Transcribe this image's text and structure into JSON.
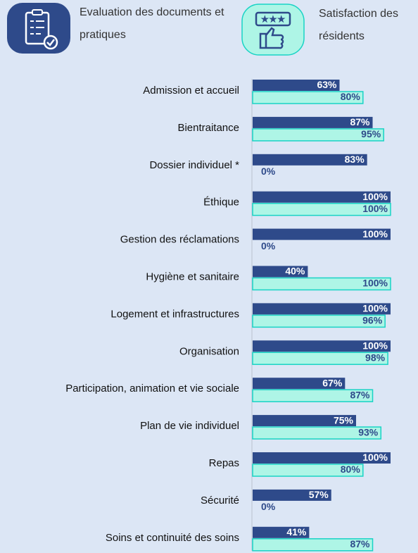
{
  "chart_data": {
    "type": "bar",
    "orientation": "horizontal",
    "categories": [
      "Admission et accueil",
      "Bientraitance",
      "Dossier individuel *",
      "Éthique",
      "Gestion des réclamations",
      "Hygiène et sanitaire",
      "Logement et infrastructures",
      "Organisation",
      "Participation, animation et vie sociale",
      "Plan de vie individuel",
      "Repas",
      "Sécurité",
      "Soins et continuité des soins"
    ],
    "series": [
      {
        "name": "Evaluation des documents et pratiques",
        "color": "#2e4a8a",
        "values": [
          63,
          87,
          83,
          100,
          100,
          40,
          100,
          100,
          67,
          75,
          100,
          57,
          41
        ],
        "value_labels": [
          "63%",
          "87%",
          "83%",
          "100%",
          "100%",
          "40%",
          "100%",
          "100%",
          "67%",
          "75%",
          "100%",
          "57%",
          "41%"
        ]
      },
      {
        "name": "Satisfaction des résidents",
        "color": "#aef5e6",
        "values": [
          80,
          95,
          0,
          100,
          0,
          100,
          96,
          98,
          87,
          93,
          80,
          0,
          87
        ],
        "value_labels": [
          "80%",
          "95%",
          "0%",
          "100%",
          "0%",
          "100%",
          "96%",
          "98%",
          "87%",
          "93%",
          "80%",
          "0%",
          "87%"
        ]
      }
    ],
    "xlim": [
      0,
      100
    ]
  }
}
